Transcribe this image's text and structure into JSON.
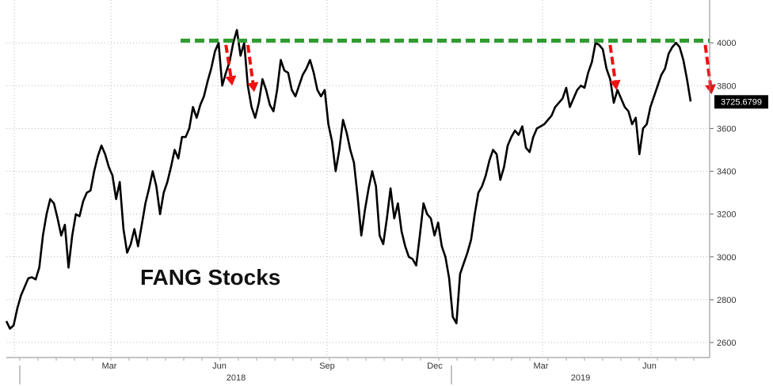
{
  "chart_data": {
    "type": "line",
    "title": "FANG Stocks",
    "xlabel": "",
    "ylabel": "",
    "ylim": [
      2530,
      4200
    ],
    "y_ticks": [
      2600,
      2800,
      3000,
      3200,
      3400,
      3600,
      3800,
      4000
    ],
    "y_axis_position": "right",
    "grid": true,
    "x_month_ticks": [
      "Mar",
      "Jun",
      "Sep",
      "Dec",
      "Mar",
      "Jun"
    ],
    "x_year_ticks": [
      "2018",
      "2019"
    ],
    "last_value_label": "3725.6799",
    "colors": {
      "line": "#000000",
      "resistance": "#2e9b2e",
      "arrows": "#ee1111",
      "label_bg": "#000000"
    },
    "series": [
      {
        "values": [
          2700,
          2665,
          2680,
          2760,
          2820,
          2860,
          2900,
          2905,
          2895,
          2950,
          3100,
          3200,
          3270,
          3250,
          3180,
          3100,
          3150,
          2950,
          3100,
          3200,
          3190,
          3260,
          3300,
          3310,
          3400,
          3470,
          3520,
          3480,
          3420,
          3380,
          3270,
          3350,
          3130,
          3020,
          3060,
          3130,
          3050,
          3150,
          3250,
          3320,
          3400,
          3330,
          3200,
          3300,
          3350,
          3420,
          3500,
          3460,
          3560,
          3560,
          3600,
          3700,
          3650,
          3710,
          3750,
          3820,
          3880,
          3960,
          4000,
          3800,
          3860,
          3910,
          4000,
          4060,
          3940,
          4000,
          3800,
          3700,
          3650,
          3720,
          3830,
          3780,
          3710,
          3680,
          3780,
          3920,
          3870,
          3860,
          3780,
          3750,
          3800,
          3850,
          3880,
          3920,
          3860,
          3780,
          3750,
          3780,
          3620,
          3540,
          3400,
          3500,
          3640,
          3580,
          3500,
          3440,
          3280,
          3100,
          3220,
          3320,
          3400,
          3330,
          3100,
          3060,
          3180,
          3320,
          3180,
          3250,
          3120,
          3050,
          3000,
          2990,
          2960,
          3100,
          3250,
          3200,
          3180,
          3100,
          3160,
          3050,
          3000,
          2900,
          2720,
          2690,
          2920,
          2970,
          3020,
          3080,
          3200,
          3300,
          3330,
          3380,
          3450,
          3500,
          3480,
          3360,
          3420,
          3520,
          3560,
          3590,
          3570,
          3610,
          3510,
          3490,
          3560,
          3600,
          3610,
          3620,
          3640,
          3660,
          3700,
          3720,
          3740,
          3790,
          3700,
          3740,
          3780,
          3800,
          3790,
          3860,
          3910,
          4000,
          3990,
          3970,
          3880,
          3830,
          3720,
          3780,
          3740,
          3700,
          3680,
          3620,
          3650,
          3480,
          3600,
          3620,
          3700,
          3750,
          3800,
          3850,
          3880,
          3950,
          3980,
          4000,
          3980,
          3920,
          3830,
          3726
        ]
      }
    ],
    "resistance_level": 4010,
    "arrows": [
      {
        "start_index": 60,
        "from": 3990,
        "to": 3800
      },
      {
        "start_index": 66,
        "from": 3990,
        "to": 3770
      },
      {
        "start_index": 165,
        "from": 3990,
        "to": 3780
      },
      {
        "start_index": 191,
        "from": 3990,
        "to": 3760
      }
    ]
  }
}
